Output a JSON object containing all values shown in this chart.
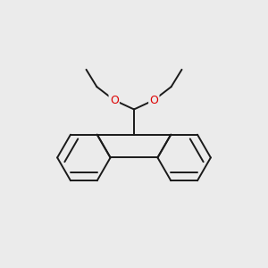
{
  "bg_color": "#ebebeb",
  "bond_color": "#1a1a1a",
  "oxygen_color": "#dd0000",
  "line_width": 1.4,
  "dbo": 0.008,
  "fig_size": [
    3.0,
    3.0
  ],
  "dpi": 100,
  "xlim": [
    0.05,
    0.95
  ],
  "ylim": [
    0.05,
    0.95
  ]
}
